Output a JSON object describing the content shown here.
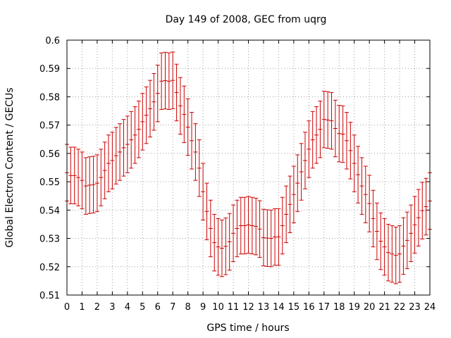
{
  "chart_data": {
    "type": "line",
    "title": "Day 149 of 2008, GEC from uqrg",
    "xlabel": "GPS time / hours",
    "ylabel": "Global Electron Content / GECUs",
    "xlim": [
      0,
      24
    ],
    "ylim": [
      0.51,
      0.6
    ],
    "x_ticks": [
      "0",
      "1",
      "2",
      "3",
      "4",
      "5",
      "6",
      "7",
      "8",
      "9",
      "10",
      "11",
      "12",
      "13",
      "14",
      "15",
      "16",
      "17",
      "18",
      "19",
      "20",
      "21",
      "22",
      "23",
      "24"
    ],
    "y_ticks": [
      "0.51",
      "0.52",
      "0.53",
      "0.54",
      "0.55",
      "0.56",
      "0.57",
      "0.58",
      "0.59",
      "0.6"
    ],
    "grid": true,
    "legend": "none",
    "series_color": "#cc0000",
    "series": [
      {
        "x": [
          0,
          0.25,
          0.5,
          0.75,
          1,
          1.25,
          1.5,
          1.75,
          2,
          2.25,
          2.5,
          2.75,
          3,
          3.25,
          3.5,
          3.75,
          4,
          4.25,
          4.5,
          4.75,
          5,
          5.25,
          5.5,
          5.75,
          6,
          6.25,
          6.5,
          6.75,
          7,
          7.25,
          7.5,
          7.75,
          8,
          8.25,
          8.5,
          8.75,
          9,
          9.25,
          9.5,
          9.75,
          10,
          10.25,
          10.5,
          10.75,
          11,
          11.25,
          11.5,
          11.75,
          12,
          12.25,
          12.5,
          12.75,
          13,
          13.25,
          13.5,
          13.75,
          14,
          14.25,
          14.5,
          14.75,
          15,
          15.25,
          15.5,
          15.75,
          16,
          16.25,
          16.5,
          16.75,
          17,
          17.25,
          17.5,
          17.75,
          18,
          18.25,
          18.5,
          18.75,
          19,
          19.25,
          19.5,
          19.75,
          20,
          20.25,
          20.5,
          20.75,
          21,
          21.25,
          21.5,
          21.75,
          22,
          22.25,
          22.5,
          22.75,
          23,
          23.25,
          23.5,
          23.75,
          24
        ],
        "y": [
          0.5532,
          0.5522,
          0.5522,
          0.5515,
          0.5505,
          0.5485,
          0.5488,
          0.549,
          0.5495,
          0.5515,
          0.554,
          0.5565,
          0.5575,
          0.5592,
          0.5605,
          0.562,
          0.5632,
          0.5648,
          0.5665,
          0.5685,
          0.5712,
          0.5735,
          0.5758,
          0.5782,
          0.5812,
          0.5855,
          0.5857,
          0.5855,
          0.5858,
          0.5815,
          0.5768,
          0.5738,
          0.5693,
          0.5645,
          0.5605,
          0.5548,
          0.5465,
          0.5395,
          0.5335,
          0.5285,
          0.527,
          0.5265,
          0.5272,
          0.5288,
          0.5318,
          0.5335,
          0.5345,
          0.5345,
          0.5348,
          0.5345,
          0.5342,
          0.5333,
          0.5303,
          0.5301,
          0.53,
          0.5305,
          0.5305,
          0.5345,
          0.5385,
          0.542,
          0.5455,
          0.5495,
          0.5535,
          0.5575,
          0.5615,
          0.5648,
          0.5665,
          0.5685,
          0.572,
          0.5718,
          0.5715,
          0.5688,
          0.567,
          0.5668,
          0.5645,
          0.561,
          0.5565,
          0.5525,
          0.5485,
          0.5455,
          0.5423,
          0.537,
          0.5325,
          0.529,
          0.527,
          0.525,
          0.5245,
          0.524,
          0.5245,
          0.5273,
          0.5293,
          0.5318,
          0.5348,
          0.5373,
          0.5398,
          0.5412,
          0.5432
        ],
        "error": 0.01
      }
    ]
  }
}
